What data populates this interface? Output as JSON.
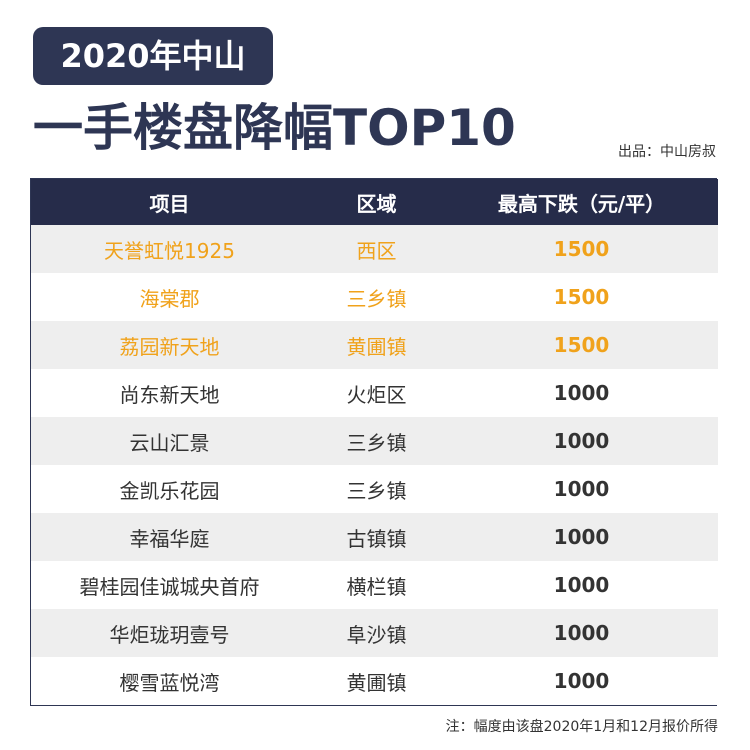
{
  "header": {
    "year_label": "2020年中山",
    "title": "一手楼盘降幅TOP10",
    "source": "出品：中山房叔"
  },
  "highlight_color": "#f0a21b",
  "brand_color": "#2e3654",
  "chart_data": {
    "type": "table",
    "title": "一手楼盘降幅TOP10",
    "columns": [
      "项目",
      "区域",
      "最高下跌（元/平）"
    ],
    "rows": [
      {
        "project": "天誉虹悦1925",
        "district": "西区",
        "drop": "1500",
        "highlight": true
      },
      {
        "project": "海棠郡",
        "district": "三乡镇",
        "drop": "1500",
        "highlight": true
      },
      {
        "project": "荔园新天地",
        "district": "黄圃镇",
        "drop": "1500",
        "highlight": true
      },
      {
        "project": "尚东新天地",
        "district": "火炬区",
        "drop": "1000",
        "highlight": false
      },
      {
        "project": "云山汇景",
        "district": "三乡镇",
        "drop": "1000",
        "highlight": false
      },
      {
        "project": "金凯乐花园",
        "district": "三乡镇",
        "drop": "1000",
        "highlight": false
      },
      {
        "project": "幸福华庭",
        "district": "古镇镇",
        "drop": "1000",
        "highlight": false
      },
      {
        "project": "碧桂园佳诚城央首府",
        "district": "横栏镇",
        "drop": "1000",
        "highlight": false
      },
      {
        "project": "华炬珑玥壹号",
        "district": "阜沙镇",
        "drop": "1000",
        "highlight": false
      },
      {
        "project": "樱雪蓝悦湾",
        "district": "黄圃镇",
        "drop": "1000",
        "highlight": false
      }
    ]
  },
  "footnote": "注：幅度由该盘2020年1月和12月报价所得"
}
